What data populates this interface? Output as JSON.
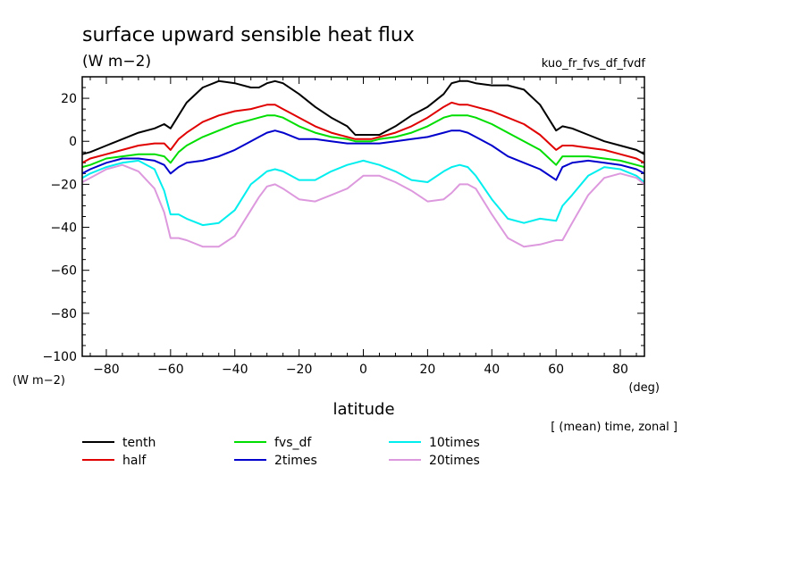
{
  "chart_data": {
    "type": "line",
    "title": "surface upward sensible heat flux",
    "title_units": "(W m−2)",
    "run_label": "kuo_fr_fvs_df_fvdf",
    "xlabel": "latitude",
    "xunits": "(deg)",
    "ylabel": "(W m−2)",
    "note": "[ (mean) time, zonal ]",
    "xlim": [
      -87.5,
      87.5
    ],
    "ylim": [
      -100,
      30
    ],
    "xticks": [
      -80,
      -60,
      -40,
      -20,
      0,
      20,
      40,
      60,
      80
    ],
    "xtick_labels": [
      "−80",
      "−60",
      "−40",
      "−20",
      "0",
      "20",
      "40",
      "60",
      "80"
    ],
    "yticks": [
      20,
      0,
      -20,
      -40,
      -60,
      -80,
      -100
    ],
    "ytick_labels": [
      "20",
      "0",
      "−20",
      "−40",
      "−60",
      "−80",
      "−100"
    ],
    "grid": false,
    "legend_position": "bottom",
    "x": [
      -87.5,
      -85,
      -80,
      -75,
      -70,
      -65,
      -62,
      -60,
      -57.5,
      -55,
      -50,
      -45,
      -40,
      -35,
      -32.5,
      -30,
      -27.5,
      -25,
      -20,
      -15,
      -10,
      -5,
      -2.5,
      0,
      2.5,
      5,
      10,
      15,
      20,
      25,
      27.5,
      30,
      32.5,
      35,
      40,
      45,
      50,
      55,
      60,
      62,
      65,
      70,
      75,
      80,
      85,
      87.5
    ],
    "series": [
      {
        "name": "tenth",
        "color": "#000000",
        "values": [
          -6,
          -5,
          -2,
          1,
          4,
          6,
          8,
          6,
          12,
          18,
          25,
          28,
          27,
          25,
          25,
          27,
          28,
          27,
          22,
          16,
          11,
          7,
          3,
          3,
          3,
          3,
          7,
          12,
          16,
          22,
          27,
          28,
          28,
          27,
          26,
          26,
          24,
          17,
          5,
          7,
          6,
          3,
          0,
          -2,
          -4,
          -6
        ]
      },
      {
        "name": "half",
        "color": "#e00000",
        "values": [
          -10,
          -8,
          -6,
          -4,
          -2,
          -1,
          -1,
          -4,
          1,
          4,
          9,
          12,
          14,
          15,
          16,
          17,
          17,
          15,
          11,
          7,
          4,
          2,
          1,
          1,
          1,
          2,
          4,
          7,
          11,
          16,
          18,
          17,
          17,
          16,
          14,
          11,
          8,
          3,
          -4,
          -2,
          -2,
          -3,
          -4,
          -6,
          -8,
          -10
        ]
      },
      {
        "name": "fvs_df",
        "color": "#00dd00",
        "values": [
          -12,
          -11,
          -8,
          -7,
          -6,
          -6,
          -7,
          -10,
          -5,
          -2,
          2,
          5,
          8,
          10,
          11,
          12,
          12,
          11,
          7,
          4,
          2,
          1,
          0,
          0,
          0,
          1,
          2,
          4,
          7,
          11,
          12,
          12,
          12,
          11,
          8,
          4,
          0,
          -4,
          -11,
          -7,
          -7,
          -7,
          -8,
          -9,
          -11,
          -12
        ]
      },
      {
        "name": "2times",
        "color": "#0000cc",
        "values": [
          -15,
          -13,
          -10,
          -8,
          -8,
          -9,
          -11,
          -15,
          -12,
          -10,
          -9,
          -7,
          -4,
          0,
          2,
          4,
          5,
          4,
          1,
          1,
          0,
          -1,
          -1,
          -1,
          -1,
          -1,
          0,
          1,
          2,
          4,
          5,
          5,
          4,
          2,
          -2,
          -7,
          -10,
          -13,
          -18,
          -12,
          -10,
          -9,
          -10,
          -11,
          -13,
          -15
        ]
      },
      {
        "name": "10times",
        "color": "#00eeee",
        "values": [
          -17,
          -15,
          -12,
          -10,
          -9,
          -13,
          -23,
          -34,
          -34,
          -36,
          -39,
          -38,
          -32,
          -20,
          -17,
          -14,
          -13,
          -14,
          -18,
          -18,
          -14,
          -11,
          -10,
          -9,
          -10,
          -11,
          -14,
          -18,
          -19,
          -14,
          -12,
          -11,
          -12,
          -16,
          -27,
          -36,
          -38,
          -36,
          -37,
          -30,
          -25,
          -16,
          -12,
          -13,
          -16,
          -19
        ]
      },
      {
        "name": "20times",
        "color": "#dd99dd",
        "values": [
          -19,
          -17,
          -13,
          -11,
          -14,
          -22,
          -33,
          -45,
          -45,
          -46,
          -49,
          -49,
          -44,
          -32,
          -26,
          -21,
          -20,
          -22,
          -27,
          -28,
          -25,
          -22,
          -19,
          -16,
          -16,
          -16,
          -19,
          -23,
          -28,
          -27,
          -24,
          -20,
          -20,
          -22,
          -34,
          -45,
          -49,
          -48,
          -46,
          -46,
          -38,
          -25,
          -17,
          -15,
          -17,
          -20
        ]
      }
    ]
  }
}
